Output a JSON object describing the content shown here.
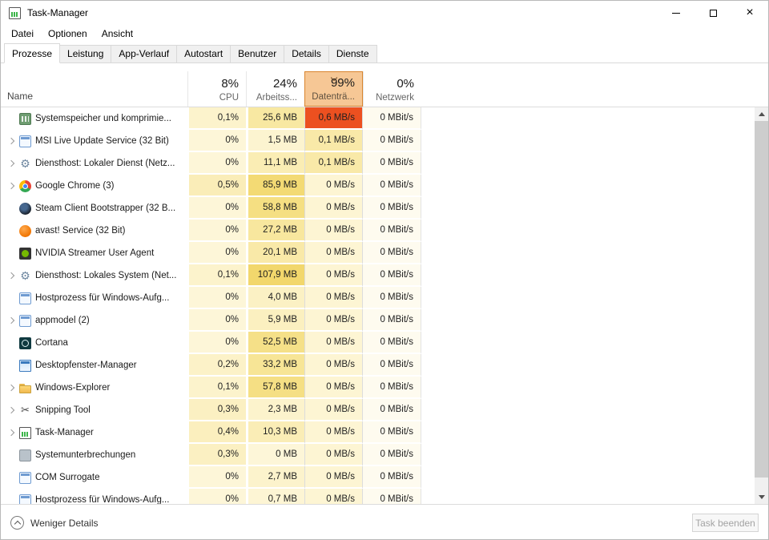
{
  "window": {
    "title": "Task-Manager"
  },
  "menu": {
    "items": [
      "Datei",
      "Optionen",
      "Ansicht"
    ]
  },
  "tabs": [
    {
      "label": "Prozesse",
      "active": true
    },
    {
      "label": "Leistung",
      "active": false
    },
    {
      "label": "App-Verlauf",
      "active": false
    },
    {
      "label": "Autostart",
      "active": false
    },
    {
      "label": "Benutzer",
      "active": false
    },
    {
      "label": "Details",
      "active": false
    },
    {
      "label": "Dienste",
      "active": false
    }
  ],
  "columns": {
    "name_label": "Name",
    "stats": [
      {
        "pct": "8%",
        "label": "CPU",
        "selected": false
      },
      {
        "pct": "24%",
        "label": "Arbeitss...",
        "selected": false
      },
      {
        "pct": "99%",
        "label": "Datenträ...",
        "selected": true,
        "sort_indicator": "down"
      },
      {
        "pct": "0%",
        "label": "Netzwerk",
        "selected": false
      }
    ]
  },
  "colors": {
    "selected_header_bg": "#F6C795",
    "selected_header_border": "#D9852F",
    "hot_cell_bg": "#EC5020",
    "net_bg": "#FEFBEF"
  },
  "rows": [
    {
      "name": "Systemspeicher und komprimie...",
      "icon": "memory-chip",
      "chevron": false,
      "cpu": "0,1%",
      "cpu_bg": "#FCF3CC",
      "mem": "25,6 MB",
      "mem_bg": "#F8E8A2",
      "disk": "0,6 MB/s",
      "disk_bg": "#EC5020",
      "net": "0 MBit/s"
    },
    {
      "name": "MSI Live Update Service (32 Bit)",
      "icon": "generic-app",
      "chevron": true,
      "cpu": "0%",
      "cpu_bg": "#FDF6D8",
      "mem": "1,5 MB",
      "mem_bg": "#FCF4D0",
      "disk": "0,1 MB/s",
      "disk_bg": "#F9E9A8",
      "net": "0 MBit/s"
    },
    {
      "name": "Diensthost: Lokaler Dienst (Netz...",
      "icon": "service-gear",
      "chevron": true,
      "cpu": "0%",
      "cpu_bg": "#FDF6D8",
      "mem": "11,1 MB",
      "mem_bg": "#FAEDB4",
      "disk": "0,1 MB/s",
      "disk_bg": "#F9E9A8",
      "net": "0 MBit/s"
    },
    {
      "name": "Google Chrome (3)",
      "icon": "chrome",
      "chevron": true,
      "cpu": "0,5%",
      "cpu_bg": "#FAEDB8",
      "mem": "85,9 MB",
      "mem_bg": "#F3DA74",
      "disk": "0 MB/s",
      "disk_bg": "#FDF5D3",
      "net": "0 MBit/s"
    },
    {
      "name": "Steam Client Bootstrapper (32 B...",
      "icon": "steam",
      "chevron": false,
      "cpu": "0%",
      "cpu_bg": "#FDF6D8",
      "mem": "58,8 MB",
      "mem_bg": "#F5DF82",
      "disk": "0 MB/s",
      "disk_bg": "#FDF5D3",
      "net": "0 MBit/s"
    },
    {
      "name": "avast! Service (32 Bit)",
      "icon": "avast",
      "chevron": false,
      "cpu": "0%",
      "cpu_bg": "#FDF6D8",
      "mem": "27,2 MB",
      "mem_bg": "#F8E79E",
      "disk": "0 MB/s",
      "disk_bg": "#FDF5D3",
      "net": "0 MBit/s"
    },
    {
      "name": "NVIDIA Streamer User Agent",
      "icon": "nvidia",
      "chevron": false,
      "cpu": "0%",
      "cpu_bg": "#FDF6D8",
      "mem": "20,1 MB",
      "mem_bg": "#F9E9A8",
      "disk": "0 MB/s",
      "disk_bg": "#FDF5D3",
      "net": "0 MBit/s"
    },
    {
      "name": "Diensthost: Lokales System (Net...",
      "icon": "service-gear",
      "chevron": true,
      "cpu": "0,1%",
      "cpu_bg": "#FCF3CC",
      "mem": "107,9 MB",
      "mem_bg": "#F2D76C",
      "disk": "0 MB/s",
      "disk_bg": "#FDF5D3",
      "net": "0 MBit/s"
    },
    {
      "name": "Hostprozess für Windows-Aufg...",
      "icon": "generic-app",
      "chevron": false,
      "cpu": "0%",
      "cpu_bg": "#FDF6D8",
      "mem": "4,0 MB",
      "mem_bg": "#FBF1C4",
      "disk": "0 MB/s",
      "disk_bg": "#FDF5D3",
      "net": "0 MBit/s"
    },
    {
      "name": "appmodel (2)",
      "icon": "generic-app",
      "chevron": true,
      "cpu": "0%",
      "cpu_bg": "#FDF6D8",
      "mem": "5,9 MB",
      "mem_bg": "#FBF0C0",
      "disk": "0 MB/s",
      "disk_bg": "#FDF5D3",
      "net": "0 MBit/s"
    },
    {
      "name": "Cortana",
      "icon": "cortana",
      "chevron": false,
      "cpu": "0%",
      "cpu_bg": "#FDF6D8",
      "mem": "52,5 MB",
      "mem_bg": "#F5E088",
      "disk": "0 MB/s",
      "disk_bg": "#FDF5D3",
      "net": "0 MBit/s"
    },
    {
      "name": "Desktopfenster-Manager",
      "icon": "window",
      "chevron": false,
      "cpu": "0,2%",
      "cpu_bg": "#FCF2C8",
      "mem": "33,2 MB",
      "mem_bg": "#F7E596",
      "disk": "0 MB/s",
      "disk_bg": "#FDF5D3",
      "net": "0 MBit/s"
    },
    {
      "name": "Windows-Explorer",
      "icon": "folder",
      "chevron": true,
      "cpu": "0,1%",
      "cpu_bg": "#FCF3CC",
      "mem": "57,8 MB",
      "mem_bg": "#F5DF84",
      "disk": "0 MB/s",
      "disk_bg": "#FDF5D3",
      "net": "0 MBit/s"
    },
    {
      "name": "Snipping Tool",
      "icon": "scissors",
      "chevron": true,
      "cpu": "0,3%",
      "cpu_bg": "#FBF0C2",
      "mem": "2,3 MB",
      "mem_bg": "#FCF3CC",
      "disk": "0 MB/s",
      "disk_bg": "#FDF5D3",
      "net": "0 MBit/s"
    },
    {
      "name": "Task-Manager",
      "icon": "task-manager",
      "chevron": true,
      "cpu": "0,4%",
      "cpu_bg": "#FBEFBE",
      "mem": "10,3 MB",
      "mem_bg": "#FAEDB6",
      "disk": "0 MB/s",
      "disk_bg": "#FDF5D3",
      "net": "0 MBit/s"
    },
    {
      "name": "Systemunterbrechungen",
      "icon": "system",
      "chevron": false,
      "cpu": "0,3%",
      "cpu_bg": "#FBF0C2",
      "mem": "0 MB",
      "mem_bg": "#FDF6D8",
      "disk": "0 MB/s",
      "disk_bg": "#FDF5D3",
      "net": "0 MBit/s"
    },
    {
      "name": "COM Surrogate",
      "icon": "generic-app",
      "chevron": false,
      "cpu": "0%",
      "cpu_bg": "#FDF6D8",
      "mem": "2,7 MB",
      "mem_bg": "#FCF3CC",
      "disk": "0 MB/s",
      "disk_bg": "#FDF5D3",
      "net": "0 MBit/s"
    },
    {
      "name": "Hostprozess für Windows-Aufg...",
      "icon": "generic-app",
      "chevron": false,
      "cpu": "0%",
      "cpu_bg": "#FDF6D8",
      "mem": "0,7 MB",
      "mem_bg": "#FDF5D4",
      "disk": "0 MB/s",
      "disk_bg": "#FDF5D3",
      "net": "0 MBit/s"
    }
  ],
  "footer": {
    "details_label": "Weniger Details",
    "end_task_label": "Task beenden",
    "end_task_enabled": false
  }
}
